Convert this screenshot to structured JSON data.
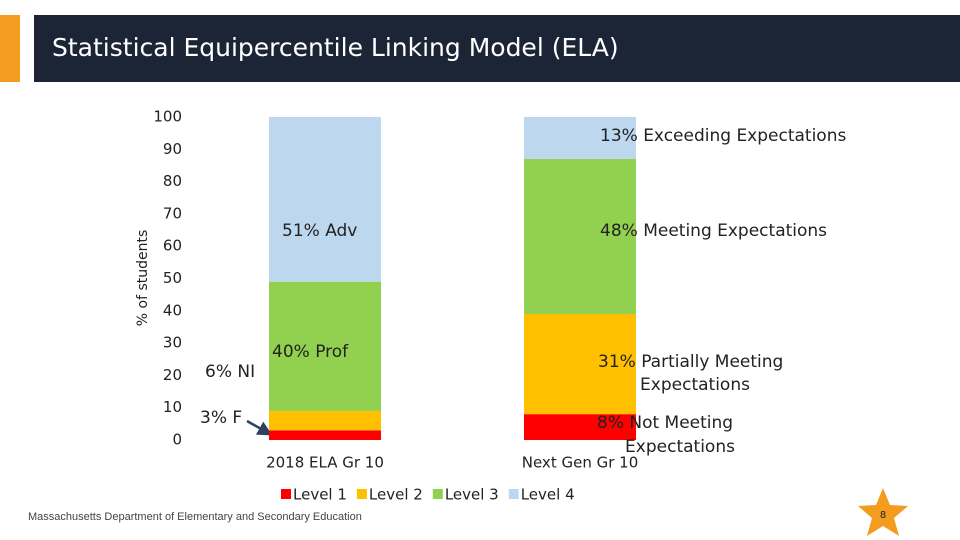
{
  "slide": {
    "footer": "Massachusetts Department of Elementary and Secondary Education",
    "page_number": "8"
  },
  "chart_data": {
    "type": "stacked_bar",
    "title": "Statistical Equipercentile Linking Model (ELA)",
    "y_label": "% of students",
    "categories": [
      "2018 ELA Gr 10",
      "Next Gen Gr 10"
    ],
    "series": [
      {
        "name": "Level 1",
        "color": "#ff0000",
        "values": [
          3,
          8
        ]
      },
      {
        "name": "Level 2",
        "color": "#ffc000",
        "values": [
          6,
          31
        ]
      },
      {
        "name": "Level 3",
        "color": "#92d050",
        "values": [
          40,
          48
        ]
      },
      {
        "name": "Level 4",
        "color": "#bdd7ee",
        "values": [
          51,
          13
        ]
      }
    ],
    "ylim": [
      0,
      100
    ],
    "yticks": [
      0,
      10,
      20,
      30,
      40,
      50,
      60,
      70,
      80,
      90,
      100
    ],
    "legend": "bottom",
    "annotations": [
      "13% Exceeding Expectations",
      "51% Adv",
      "48% Meeting Expectations",
      "40% Prof",
      "6% NI",
      "31% Partially Meeting",
      "Expectations",
      "3% F",
      "8% Not Meeting",
      "Expectations"
    ]
  }
}
